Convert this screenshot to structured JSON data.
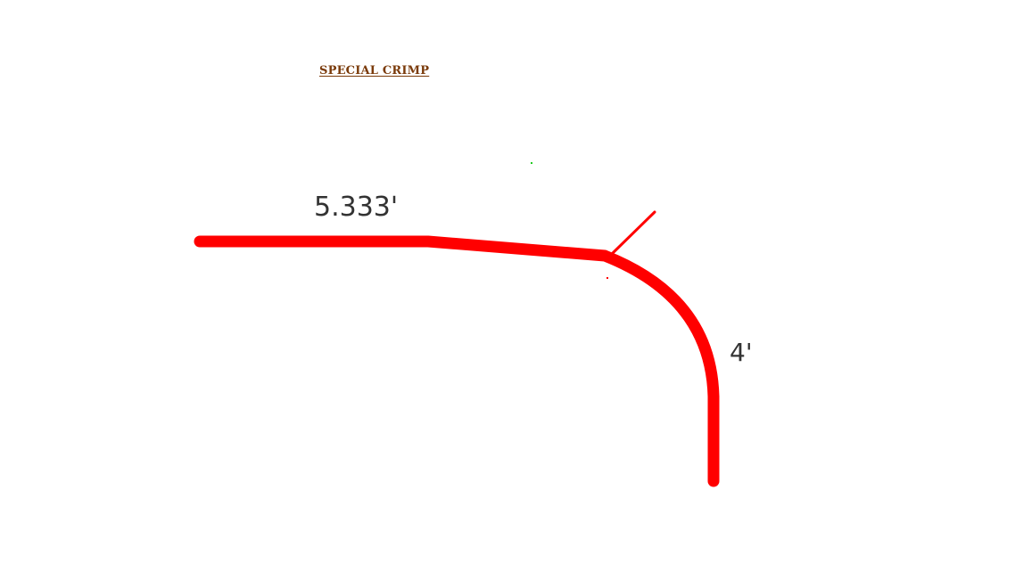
{
  "diagram": {
    "title": "SPECIAL CRIMP",
    "dimensions": {
      "top_length": "5.333'",
      "side_length": "4'"
    },
    "colors": {
      "profile_line": "#ff0000",
      "title_text": "#7a3a0a",
      "dimension_text": "#333333",
      "marker_dot": "#22cc22"
    }
  }
}
